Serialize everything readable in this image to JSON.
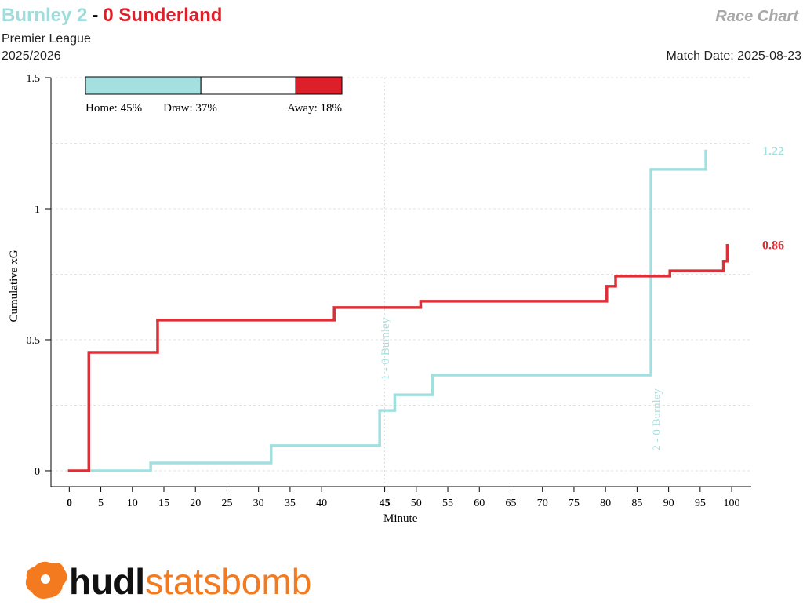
{
  "header": {
    "home": "Burnley 2",
    "sep": "-",
    "away": "0 Sunderland",
    "chart_name": "Race Chart",
    "competition": "Premier League",
    "season": "2025/2026",
    "match_date": "Match Date: 2025-08-23",
    "home_color": "#9fdcdc",
    "away_color": "#dd1f2a"
  },
  "chart_data": {
    "type": "step",
    "xlabel": "Minute",
    "ylabel": "Cumulative xG",
    "xlim": [
      -2.9,
      108.1
    ],
    "ylim": [
      -0.06,
      1.5
    ],
    "xticks": [
      0,
      5,
      10,
      15,
      20,
      25,
      30,
      35,
      40,
      {
        "value": 50,
        "label": "45"
      },
      {
        "value": 55,
        "label": "50"
      },
      {
        "value": 60,
        "label": "55"
      },
      {
        "value": 65,
        "label": "60"
      },
      {
        "value": 70,
        "label": "65"
      },
      {
        "value": 75,
        "label": "70"
      },
      {
        "value": 80,
        "label": "75"
      },
      {
        "value": 85,
        "label": "80"
      },
      {
        "value": 90,
        "label": "85"
      },
      {
        "value": 95,
        "label": "90"
      },
      {
        "value": 100,
        "label": "95"
      },
      {
        "value": 105,
        "label": "100"
      }
    ],
    "yticks": [
      0,
      0.5,
      1,
      1.5
    ],
    "ygrid": [
      0,
      0.25,
      0.5,
      0.75,
      1,
      1.25,
      1.5
    ],
    "half_time": 50,
    "series": [
      {
        "color": "#a4dfdf",
        "x": [
          3.1,
          12.9,
          32.0,
          49.2,
          51.6,
          57.6,
          92.2,
          100.9
        ],
        "values": [
          0,
          0.03,
          0.096,
          0.23,
          0.29,
          0.365,
          1.15,
          1.22
        ]
      },
      {
        "color": "#dc3038",
        "x": [
          0,
          3.1,
          14.0,
          42.0,
          55.7,
          85.2,
          86.6,
          95.2,
          103.7,
          104.3
        ],
        "values": [
          0,
          0.452,
          0.575,
          0.623,
          0.647,
          0.704,
          0.743,
          0.763,
          0.8,
          0.86
        ]
      }
    ],
    "annotations": [
      {
        "text": "1 - 0 Burnley",
        "x": 49.2,
        "color": "#a4dfdf"
      },
      {
        "text": "2 - 0 Burnley",
        "x": 92.2,
        "color": "#a4dfdf"
      }
    ],
    "outcome_bar": {
      "values": [
        45,
        37,
        18
      ],
      "value_labels": [
        "Home: 45%",
        "Draw: 37%",
        "Away: 18%"
      ],
      "colors": [
        "#a4e0e0",
        "#ffffff",
        "#dd1f2a"
      ]
    }
  },
  "logo": {
    "bold": "hudl",
    "light": "statsbomb",
    "color": "#f47a20"
  }
}
